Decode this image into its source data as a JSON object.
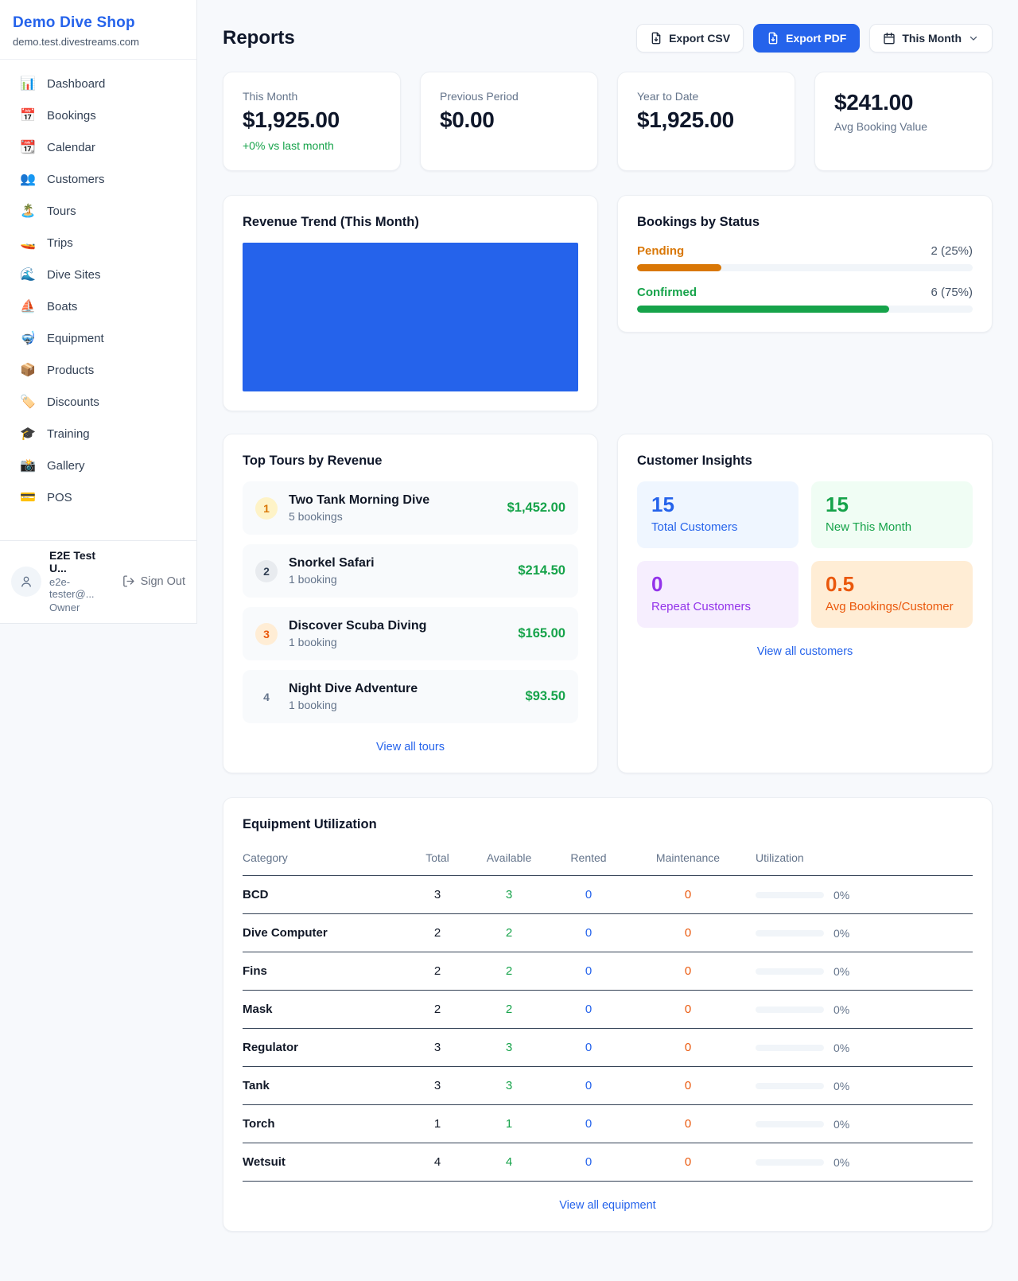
{
  "theme": {
    "pagebg": "#f7f9fc",
    "accent": "#2563eb",
    "green": "#16a34a",
    "orange": "#ea580c",
    "amber": "#d97706"
  },
  "sidebar": {
    "brand": {
      "name": "Demo Dive Shop",
      "domain": "demo.test.divestreams.com"
    },
    "items": [
      {
        "icon": "bar-chart",
        "emoji": "📊",
        "label": "Dashboard"
      },
      {
        "icon": "calendar-date",
        "emoji": "📅",
        "label": "Bookings"
      },
      {
        "icon": "tear-off-calendar",
        "emoji": "📆",
        "label": "Calendar"
      },
      {
        "icon": "people",
        "emoji": "👥",
        "label": "Customers"
      },
      {
        "icon": "island",
        "emoji": "🏝️",
        "label": "Tours"
      },
      {
        "icon": "speedboat",
        "emoji": "🚤",
        "label": "Trips"
      },
      {
        "icon": "wave",
        "emoji": "🌊",
        "label": "Dive Sites"
      },
      {
        "icon": "sailboat",
        "emoji": "⛵",
        "label": "Boats"
      },
      {
        "icon": "diving-mask",
        "emoji": "🤿",
        "label": "Equipment"
      },
      {
        "icon": "package",
        "emoji": "📦",
        "label": "Products"
      },
      {
        "icon": "tag",
        "emoji": "🏷️",
        "label": "Discounts"
      },
      {
        "icon": "graduation-cap",
        "emoji": "🎓",
        "label": "Training"
      },
      {
        "icon": "camera",
        "emoji": "📸",
        "label": "Gallery"
      },
      {
        "icon": "credit-card",
        "emoji": "💳",
        "label": "POS"
      }
    ],
    "user": {
      "name": "E2E Test U...",
      "email": "e2e-tester@...",
      "role": "Owner",
      "signout_label": "Sign Out"
    }
  },
  "header": {
    "title": "Reports",
    "export_csv_label": "Export CSV",
    "export_pdf_label": "Export PDF",
    "period_label": "This Month"
  },
  "stats": [
    {
      "label": "This Month",
      "value": "$1,925.00",
      "delta": "+0% vs last month"
    },
    {
      "label": "Previous Period",
      "value": "$0.00"
    },
    {
      "label": "Year to Date",
      "value": "$1,925.00"
    },
    {
      "label": "Avg Booking Value",
      "value": "$241.00"
    }
  ],
  "revenue_trend": {
    "title": "Revenue Trend (This Month)",
    "fill_color": "#2563eb"
  },
  "bookings_by_status": {
    "title": "Bookings by Status",
    "rows": [
      {
        "label": "Pending",
        "count_text": "2 (25%)",
        "pct": 25,
        "color": "#d97706"
      },
      {
        "label": "Confirmed",
        "count_text": "6 (75%)",
        "pct": 75,
        "color": "#16a34a"
      }
    ]
  },
  "top_tours": {
    "title": "Top Tours by Revenue",
    "view_all": "View all tours",
    "rows": [
      {
        "rank": "1",
        "name": "Two Tank Morning Dive",
        "bookings": "5 bookings",
        "revenue": "$1,452.00",
        "badge_bg": "#fef3c7",
        "badge_color": "#d97706"
      },
      {
        "rank": "2",
        "name": "Snorkel Safari",
        "bookings": "1 booking",
        "revenue": "$214.50",
        "badge_bg": "#e8ebef",
        "badge_color": "#334155"
      },
      {
        "rank": "3",
        "name": "Discover Scuba Diving",
        "bookings": "1 booking",
        "revenue": "$165.00",
        "badge_bg": "#ffedd5",
        "badge_color": "#ea580c"
      },
      {
        "rank": "4",
        "name": "Night Dive Adventure",
        "bookings": "1 booking",
        "revenue": "$93.50",
        "badge_bg": "transparent",
        "badge_color": "#64748b"
      }
    ]
  },
  "customer_insights": {
    "title": "Customer Insights",
    "view_all": "View all customers",
    "tiles": [
      {
        "value": "15",
        "label": "Total Customers",
        "bg": "#eff6ff",
        "color": "#2563eb"
      },
      {
        "value": "15",
        "label": "New This Month",
        "bg": "#f0fdf4",
        "color": "#16a34a"
      },
      {
        "value": "0",
        "label": "Repeat Customers",
        "bg": "#f6eefe",
        "color": "#9333ea"
      },
      {
        "value": "0.5",
        "label": "Avg Bookings/Customer",
        "bg": "#ffedd5",
        "color": "#ea580c"
      }
    ]
  },
  "equipment": {
    "title": "Equipment Utilization",
    "view_all": "View all equipment",
    "columns": [
      "Category",
      "Total",
      "Available",
      "Rented",
      "Maintenance",
      "Utilization"
    ],
    "rows": [
      {
        "category": "BCD",
        "total": "3",
        "available": "3",
        "rented": "0",
        "maintenance": "0",
        "utilization": "0%",
        "pct": 0
      },
      {
        "category": "Dive Computer",
        "total": "2",
        "available": "2",
        "rented": "0",
        "maintenance": "0",
        "utilization": "0%",
        "pct": 0
      },
      {
        "category": "Fins",
        "total": "2",
        "available": "2",
        "rented": "0",
        "maintenance": "0",
        "utilization": "0%",
        "pct": 0
      },
      {
        "category": "Mask",
        "total": "2",
        "available": "2",
        "rented": "0",
        "maintenance": "0",
        "utilization": "0%",
        "pct": 0
      },
      {
        "category": "Regulator",
        "total": "3",
        "available": "3",
        "rented": "0",
        "maintenance": "0",
        "utilization": "0%",
        "pct": 0
      },
      {
        "category": "Tank",
        "total": "3",
        "available": "3",
        "rented": "0",
        "maintenance": "0",
        "utilization": "0%",
        "pct": 0
      },
      {
        "category": "Torch",
        "total": "1",
        "available": "1",
        "rented": "0",
        "maintenance": "0",
        "utilization": "0%",
        "pct": 0
      },
      {
        "category": "Wetsuit",
        "total": "4",
        "available": "4",
        "rented": "0",
        "maintenance": "0",
        "utilization": "0%",
        "pct": 0
      }
    ]
  }
}
